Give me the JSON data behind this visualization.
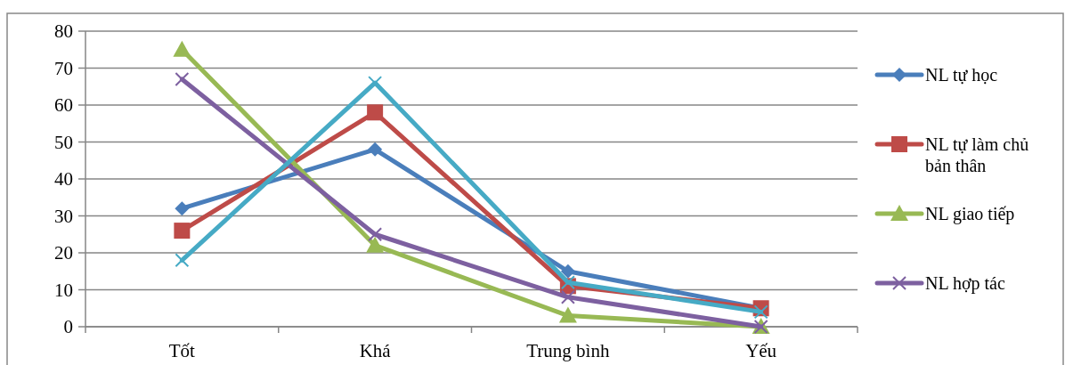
{
  "chart_data": {
    "type": "line",
    "categories": [
      "Tốt",
      "Khá",
      "Trung bình",
      "Yếu"
    ],
    "series": [
      {
        "name": "NL tự học",
        "color": "#4a7ebb",
        "marker": "diamond",
        "values": [
          32,
          48,
          15,
          5
        ]
      },
      {
        "name": "NL tự làm chủ bản thân",
        "color": "#be4b48",
        "marker": "square",
        "values": [
          26,
          58,
          11,
          5
        ]
      },
      {
        "name": "NL giao tiếp",
        "color": "#98b954",
        "marker": "triangle",
        "values": [
          75,
          22,
          3,
          0
        ]
      },
      {
        "name": "NL hợp tác",
        "color": "#7d60a0",
        "marker": "cross",
        "values": [
          67,
          25,
          8,
          0
        ]
      },
      {
        "color": "#46aac5",
        "marker": "cross",
        "values": [
          18,
          66,
          12,
          4
        ]
      }
    ],
    "ylim": [
      0,
      80
    ],
    "yticks": [
      0,
      10,
      20,
      30,
      40,
      50,
      60,
      70,
      80
    ],
    "grid": "y",
    "legend": "right",
    "line_style": "solid"
  }
}
